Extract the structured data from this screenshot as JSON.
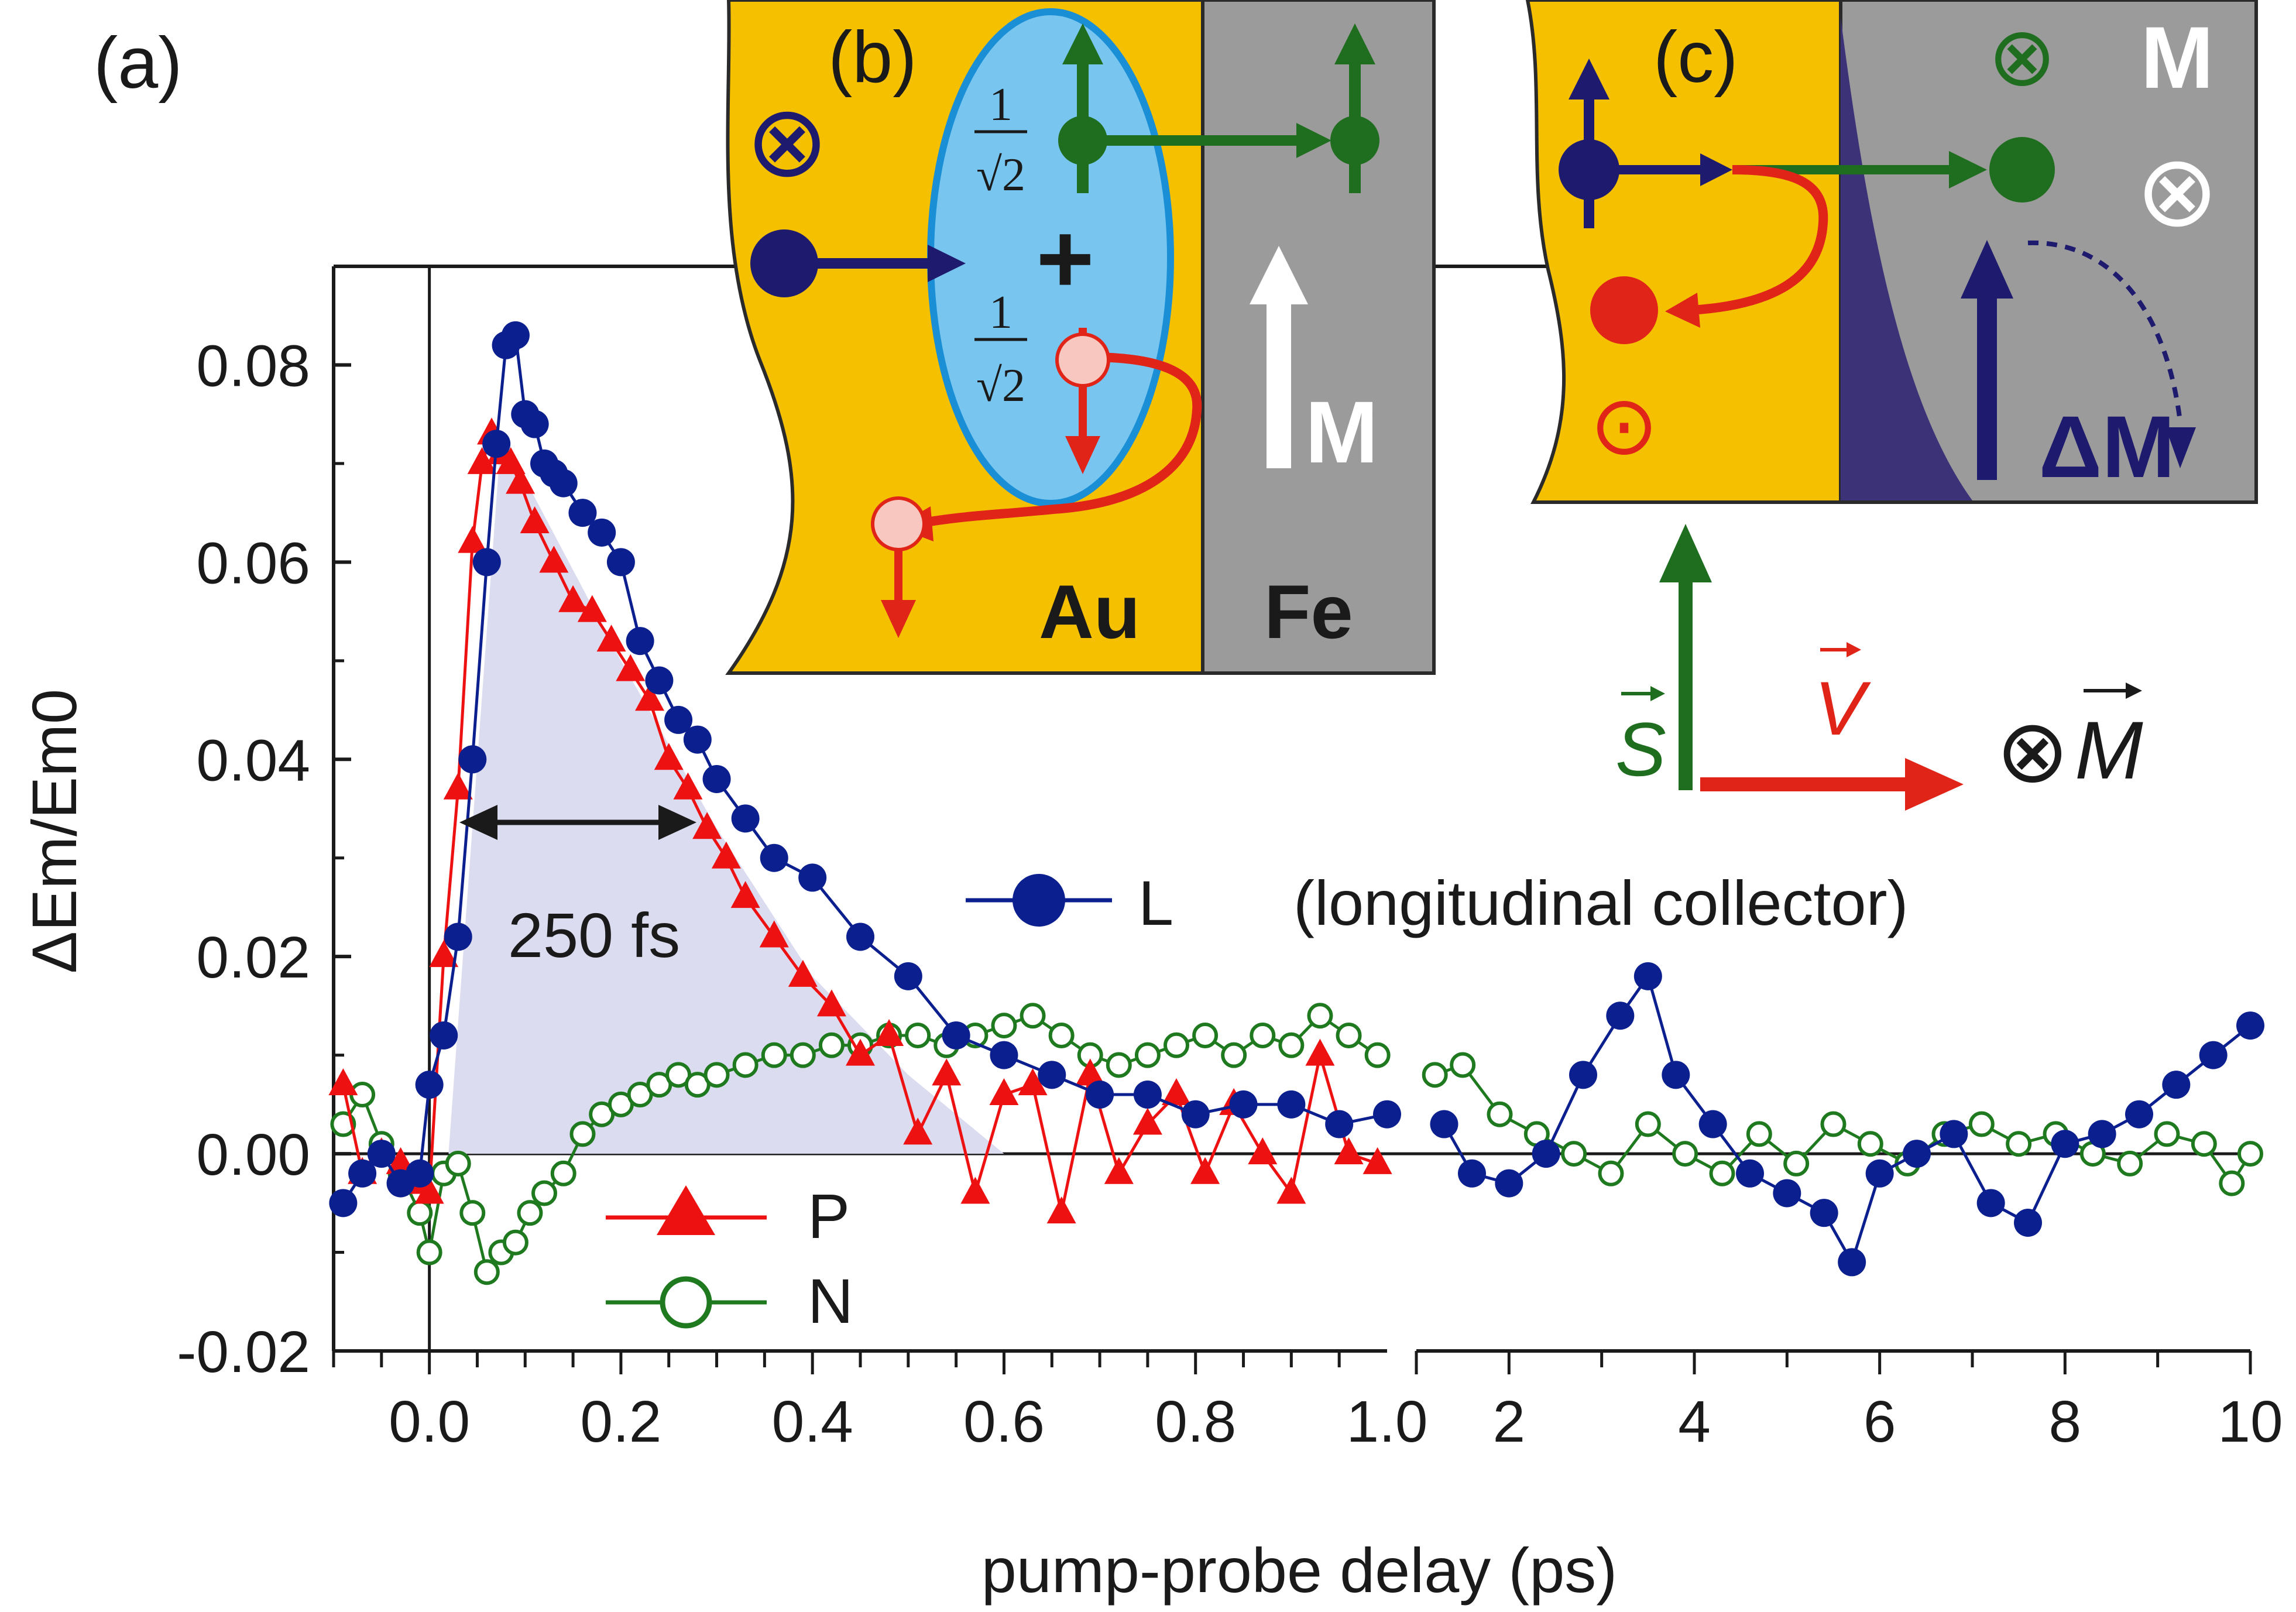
{
  "colors": {
    "L": "#0b1f8f",
    "P": "#ee1111",
    "N": "#1f7a1f",
    "shade": "#dcdcf0",
    "gold": "#f5c000",
    "iron": "#9b9b9b",
    "blue_ellipse": "#78c6f0",
    "navy": "#1e1a6e",
    "green": "#1f6e1f",
    "red": "#e02418"
  },
  "chart_data": {
    "type": "line",
    "xlabel": "pump-probe delay (ps)",
    "ylabel": "ΔEm/Em0",
    "ylim": [
      -0.02,
      0.09
    ],
    "y_ticks": [
      "-0.02",
      "0.00",
      "0.02",
      "0.04",
      "0.06",
      "0.08"
    ],
    "y_tick_values": [
      -0.02,
      0,
      0.02,
      0.04,
      0.06,
      0.08
    ],
    "x_segments": [
      {
        "range": [
          -0.1,
          1.0
        ],
        "ticks": [
          "0.0",
          "0.2",
          "0.4",
          "0.6",
          "0.8",
          "1.0"
        ],
        "tick_values": [
          0,
          0.2,
          0.4,
          0.6,
          0.8,
          1.0
        ]
      },
      {
        "range": [
          1.0,
          10.0
        ],
        "ticks": [
          "2",
          "4",
          "6",
          "8",
          "10"
        ],
        "tick_values": [
          2,
          4,
          6,
          8,
          10
        ]
      }
    ],
    "annotation": "250 fs",
    "annotation_span": [
      0.035,
      0.285
    ],
    "series": [
      {
        "name": "L",
        "legend": "L",
        "legend_extra": "(longitudinal collector)",
        "marker": "circle",
        "x": [
          -0.09,
          -0.07,
          -0.05,
          -0.03,
          -0.01,
          0.0,
          0.015,
          0.03,
          0.045,
          0.06,
          0.07,
          0.08,
          0.09,
          0.1,
          0.11,
          0.12,
          0.13,
          0.14,
          0.16,
          0.18,
          0.2,
          0.22,
          0.24,
          0.26,
          0.28,
          0.3,
          0.33,
          0.36,
          0.4,
          0.45,
          0.5,
          0.55,
          0.6,
          0.65,
          0.7,
          0.75,
          0.8,
          0.85,
          0.9,
          0.95,
          1.0,
          1.3,
          1.6,
          2.0,
          2.4,
          2.8,
          3.2,
          3.5,
          3.8,
          4.2,
          4.6,
          5.0,
          5.4,
          5.7,
          6.0,
          6.4,
          6.8,
          7.2,
          7.6,
          8.0,
          8.4,
          8.8,
          9.2,
          9.6,
          10.0
        ],
        "y": [
          -0.005,
          -0.002,
          0.0,
          -0.003,
          -0.002,
          0.007,
          0.012,
          0.022,
          0.04,
          0.06,
          0.072,
          0.082,
          0.083,
          0.075,
          0.074,
          0.07,
          0.069,
          0.068,
          0.065,
          0.063,
          0.06,
          0.052,
          0.048,
          0.044,
          0.042,
          0.038,
          0.034,
          0.03,
          0.028,
          0.022,
          0.018,
          0.012,
          0.01,
          0.008,
          0.006,
          0.006,
          0.004,
          0.005,
          0.005,
          0.003,
          0.004,
          0.003,
          -0.002,
          -0.003,
          0.0,
          0.008,
          0.014,
          0.018,
          0.008,
          0.003,
          -0.002,
          -0.004,
          -0.006,
          -0.011,
          -0.002,
          0.0,
          0.002,
          -0.005,
          -0.007,
          0.001,
          0.002,
          0.004,
          0.007,
          0.01,
          0.013
        ]
      },
      {
        "name": "P",
        "legend": "P",
        "marker": "triangle",
        "x": [
          -0.09,
          -0.07,
          -0.05,
          -0.03,
          -0.01,
          0.0,
          0.015,
          0.03,
          0.045,
          0.055,
          0.065,
          0.075,
          0.085,
          0.095,
          0.11,
          0.13,
          0.15,
          0.17,
          0.19,
          0.21,
          0.23,
          0.25,
          0.27,
          0.29,
          0.31,
          0.33,
          0.36,
          0.39,
          0.42,
          0.45,
          0.48,
          0.51,
          0.54,
          0.57,
          0.6,
          0.63,
          0.66,
          0.69,
          0.72,
          0.75,
          0.78,
          0.81,
          0.84,
          0.87,
          0.9,
          0.93,
          0.96,
          0.99
        ],
        "y": [
          0.007,
          -0.002,
          0.0,
          -0.001,
          -0.003,
          -0.004,
          0.02,
          0.037,
          0.062,
          0.07,
          0.073,
          0.071,
          0.07,
          0.068,
          0.064,
          0.06,
          0.056,
          0.055,
          0.052,
          0.049,
          0.046,
          0.04,
          0.037,
          0.033,
          0.03,
          0.026,
          0.022,
          0.018,
          0.015,
          0.01,
          0.012,
          0.002,
          0.008,
          -0.004,
          0.006,
          0.007,
          -0.006,
          0.008,
          -0.002,
          0.003,
          0.006,
          -0.002,
          0.005,
          0.0,
          -0.004,
          0.01,
          0.0,
          -0.001
        ]
      },
      {
        "name": "N",
        "legend": "N",
        "marker": "open-circle",
        "x": [
          -0.09,
          -0.07,
          -0.05,
          -0.03,
          -0.01,
          0.0,
          0.015,
          0.03,
          0.045,
          0.06,
          0.075,
          0.09,
          0.105,
          0.12,
          0.14,
          0.16,
          0.18,
          0.2,
          0.22,
          0.24,
          0.26,
          0.28,
          0.3,
          0.33,
          0.36,
          0.39,
          0.42,
          0.45,
          0.48,
          0.51,
          0.54,
          0.57,
          0.6,
          0.63,
          0.66,
          0.69,
          0.72,
          0.75,
          0.78,
          0.81,
          0.84,
          0.87,
          0.9,
          0.93,
          0.96,
          0.99,
          1.2,
          1.5,
          1.9,
          2.3,
          2.7,
          3.1,
          3.5,
          3.9,
          4.3,
          4.7,
          5.1,
          5.5,
          5.9,
          6.3,
          6.7,
          7.1,
          7.5,
          7.9,
          8.3,
          8.7,
          9.1,
          9.5,
          9.8,
          10.0
        ],
        "y": [
          0.003,
          0.006,
          0.001,
          -0.002,
          -0.006,
          -0.01,
          -0.002,
          -0.001,
          -0.006,
          -0.012,
          -0.01,
          -0.009,
          -0.006,
          -0.004,
          -0.002,
          0.002,
          0.004,
          0.005,
          0.006,
          0.007,
          0.008,
          0.007,
          0.008,
          0.009,
          0.01,
          0.01,
          0.011,
          0.011,
          0.012,
          0.012,
          0.011,
          0.012,
          0.013,
          0.014,
          0.012,
          0.01,
          0.009,
          0.01,
          0.011,
          0.012,
          0.01,
          0.012,
          0.011,
          0.014,
          0.012,
          0.01,
          0.008,
          0.009,
          0.004,
          0.002,
          0.0,
          -0.002,
          0.003,
          0.0,
          -0.002,
          0.002,
          -0.001,
          0.003,
          0.001,
          -0.001,
          0.002,
          0.003,
          0.001,
          0.002,
          0.0,
          -0.001,
          0.002,
          0.001,
          -0.003,
          0.0
        ]
      }
    ]
  },
  "panels": {
    "a_label": "(a)",
    "b_label": "(b)",
    "c_label": "(c)",
    "b_au": "Au",
    "b_fe": "Fe",
    "b_m": "M",
    "b_coef1_num": "1",
    "b_coef2_num": "1",
    "b_coef_den": "√2",
    "b_plus": "+",
    "c_m": "M",
    "c_dm": "ΔM",
    "otimes": "⊗",
    "odot": "⊙",
    "vec_s": "S",
    "vec_v": "V",
    "vec_m": "M"
  }
}
